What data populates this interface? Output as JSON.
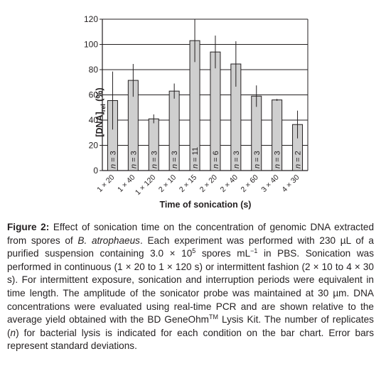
{
  "chart_data": {
    "type": "bar",
    "categories": [
      "1 × 20",
      "1 × 40",
      "1 × 120",
      "2 × 10",
      "2 × 15",
      "2 × 20",
      "2 × 40",
      "2 × 60",
      "3 × 40",
      "4 × 30"
    ],
    "values": [
      55.5,
      71.5,
      41,
      63,
      103,
      94,
      84.5,
      59,
      56,
      36.5
    ],
    "errors": [
      23,
      13,
      3.5,
      6,
      17,
      13,
      18,
      8.5,
      0.8,
      11
    ],
    "replicates": [
      "n = 3",
      "n = 3",
      "n = 3",
      "n = 3",
      "n = 11",
      "n = 6",
      "n = 3",
      "n = 3",
      "n = 3",
      "n = 2"
    ],
    "xlabel": "Time of sonication (s)",
    "ylabel_main": "[DNA]",
    "ylabel_sub": "rel",
    "ylabel_unit": " (%)",
    "ylim": [
      0,
      120
    ],
    "yticks": [
      0,
      20,
      40,
      60,
      80,
      100,
      120
    ],
    "grid": true,
    "colors": {
      "bar": "#cfcfcf",
      "grid": "#231f20",
      "text": "#231f20"
    }
  },
  "caption": {
    "label": "Figure 2:",
    "t1": " Effect of sonication time on the concentration of genomic DNA extracted from spores of ",
    "species": "B. atrophaeus",
    "t2": ". Each experiment was performed with 230 µL of a purified suspension containing 3.0 × 10",
    "exp1": "5",
    "t3": " spores mL",
    "exp2": "−1",
    "t4": " in PBS. Sonication was performed in continuous (1 × 20 to 1 × 120 s) or intermittent fashion (2 × 10 to 4 × 30 s). For intermittent exposure, sonication and interruption periods were equivalent in time length. The amplitude of the sonicator probe was maintained at 30 µm. DNA concentrations were evaluated using real-time PCR and are shown relative to the average yield obtained with the BD GeneOhm",
    "tm": "TM",
    "t5": " Lysis Kit. The number of replicates (",
    "n": "n",
    "t6": ") for bacterial lysis is indicated for each condition on the bar chart. Error bars represent standard deviations."
  }
}
